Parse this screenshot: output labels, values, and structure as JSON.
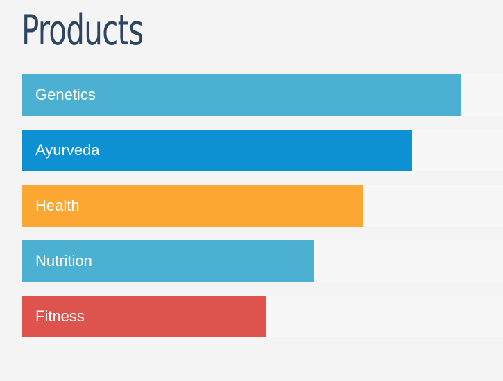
{
  "header": {
    "title": "Products"
  },
  "products": [
    {
      "label": "Genetics",
      "value": 0.912,
      "color": "#4bb0d1"
    },
    {
      "label": "Ayurveda",
      "value": 0.811,
      "color": "#0e91d3"
    },
    {
      "label": "Health",
      "value": 0.709,
      "color": "#fba731"
    },
    {
      "label": "Nutrition",
      "value": 0.608,
      "color": "#4bb0d1"
    },
    {
      "label": "Fitness",
      "value": 0.507,
      "color": "#dd544f"
    }
  ]
}
